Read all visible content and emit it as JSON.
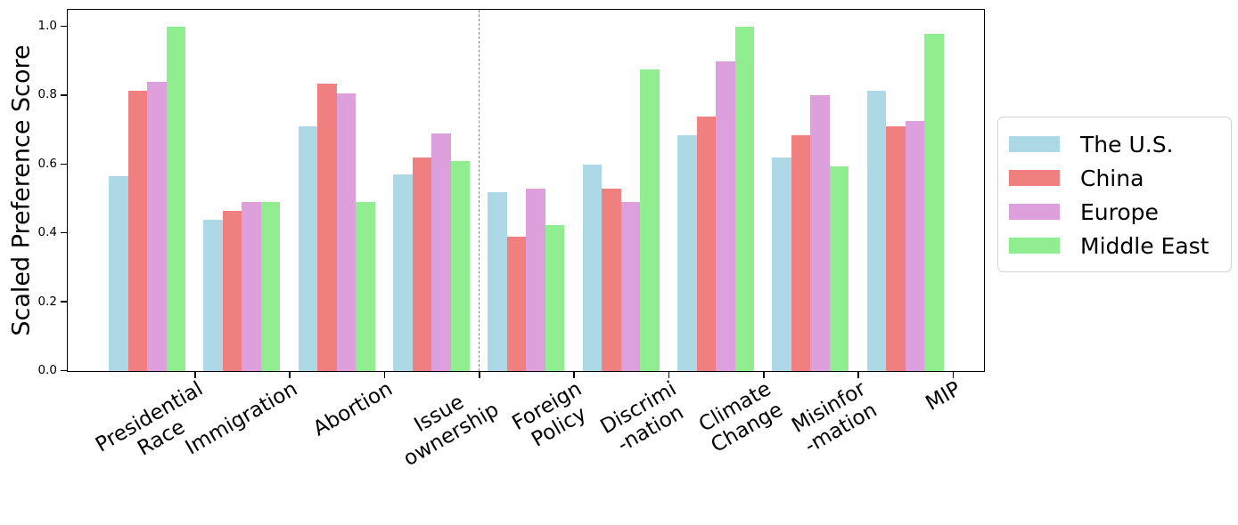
{
  "chart_data": {
    "type": "bar",
    "title": "",
    "xlabel": "",
    "ylabel": "Scaled Preference Score",
    "ylim": [
      0,
      1.05
    ],
    "yticks": [
      "0.0",
      "0.2",
      "0.4",
      "0.6",
      "0.8",
      "1.0"
    ],
    "grid": false,
    "legend_position": "right",
    "categories": [
      "Presidential\nRace",
      "Immigration",
      "Abortion",
      "Issue\nownership",
      "Foreign\nPolicy",
      "Discrimi\n-nation",
      "Climate\nChange",
      "Misinfor\n-mation",
      "MIP"
    ],
    "series": [
      {
        "name": "The U.S.",
        "color": "#ADD8E6",
        "values": [
          0.565,
          0.44,
          0.71,
          0.57,
          0.52,
          0.6,
          0.685,
          0.62,
          0.815
        ]
      },
      {
        "name": "China",
        "color": "#F08080",
        "values": [
          0.815,
          0.465,
          0.835,
          0.62,
          0.39,
          0.53,
          0.74,
          0.685,
          0.71
        ]
      },
      {
        "name": "Europe",
        "color": "#DDA0DD",
        "values": [
          0.84,
          0.49,
          0.805,
          0.69,
          0.53,
          0.49,
          0.9,
          0.8,
          0.725
        ]
      },
      {
        "name": "Middle East",
        "color": "#90EE90",
        "values": [
          1.0,
          0.49,
          0.49,
          0.61,
          0.425,
          0.875,
          1.0,
          0.595,
          0.98
        ]
      }
    ],
    "separator_after_category_index": 3,
    "separator_color": "#8a8a8a",
    "axis_color": "#000000"
  }
}
